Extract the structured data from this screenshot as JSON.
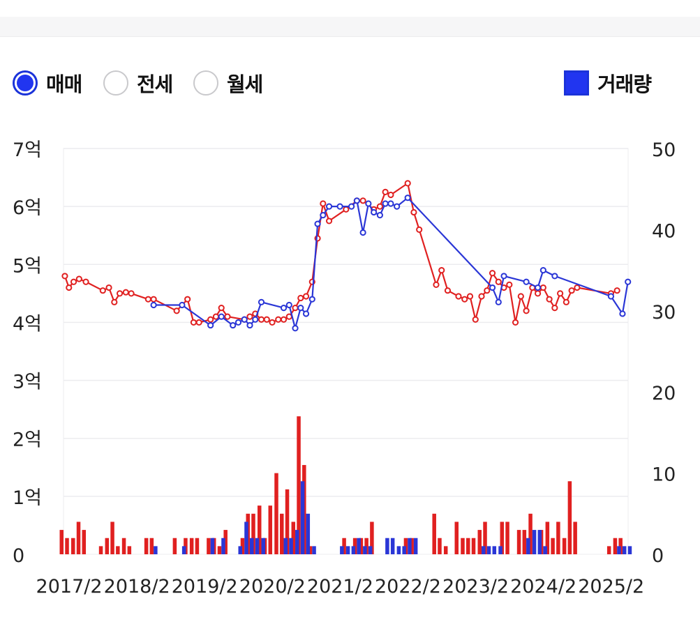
{
  "filters": {
    "options": [
      {
        "label": "매매",
        "checked": true
      },
      {
        "label": "전세",
        "checked": false
      },
      {
        "label": "월세",
        "checked": false
      }
    ],
    "volume_legend": "거래량"
  },
  "colors": {
    "sale": "#e02020",
    "deal": "#2a36d6",
    "grid": "#ececef"
  },
  "chart_data": {
    "type": "line",
    "left_axis": {
      "ticks": [
        "0",
        "1억",
        "2억",
        "3억",
        "4억",
        "5억",
        "6억",
        "7억"
      ],
      "range": [
        0,
        7
      ]
    },
    "right_axis": {
      "ticks": [
        "0",
        "10",
        "20",
        "30",
        "40",
        "50"
      ],
      "range": [
        0,
        50
      ]
    },
    "x_range": [
      2017.0,
      2025.333
    ],
    "x_ticks": [
      "2017/2",
      "2018/2",
      "2019/2",
      "2020/2",
      "2021/2",
      "2022/2",
      "2023/2",
      "2024/2",
      "2025/2"
    ],
    "x_tick_values": [
      2017.083,
      2018.083,
      2019.083,
      2020.083,
      2021.083,
      2022.083,
      2023.083,
      2024.083,
      2025.083
    ],
    "series": [
      {
        "color": "#e02020",
        "points": [
          [
            2017.02,
            4.8
          ],
          [
            2017.08,
            4.6
          ],
          [
            2017.15,
            4.7
          ],
          [
            2017.23,
            4.75
          ],
          [
            2017.33,
            4.7
          ],
          [
            2017.58,
            4.55
          ],
          [
            2017.67,
            4.6
          ],
          [
            2017.75,
            4.35
          ],
          [
            2017.83,
            4.5
          ],
          [
            2017.92,
            4.52
          ],
          [
            2018.0,
            4.5
          ],
          [
            2018.25,
            4.4
          ],
          [
            2018.33,
            4.4
          ],
          [
            2018.67,
            4.2
          ],
          [
            2018.83,
            4.4
          ],
          [
            2018.92,
            4.0
          ],
          [
            2019.0,
            4.0
          ],
          [
            2019.17,
            4.05
          ],
          [
            2019.25,
            4.1
          ],
          [
            2019.33,
            4.25
          ],
          [
            2019.42,
            4.1
          ],
          [
            2019.67,
            4.05
          ],
          [
            2019.75,
            4.1
          ],
          [
            2019.83,
            4.15
          ],
          [
            2019.92,
            4.05
          ],
          [
            2020.0,
            4.05
          ],
          [
            2020.08,
            4.0
          ],
          [
            2020.17,
            4.05
          ],
          [
            2020.25,
            4.05
          ],
          [
            2020.33,
            4.1
          ],
          [
            2020.42,
            4.25
          ],
          [
            2020.5,
            4.42
          ],
          [
            2020.58,
            4.45
          ],
          [
            2020.67,
            4.7
          ],
          [
            2020.75,
            5.45
          ],
          [
            2020.83,
            6.05
          ],
          [
            2020.92,
            5.75
          ],
          [
            2021.17,
            5.95
          ],
          [
            2021.33,
            6.1
          ],
          [
            2021.42,
            6.1
          ],
          [
            2021.58,
            5.95
          ],
          [
            2021.67,
            6.0
          ],
          [
            2021.75,
            6.25
          ],
          [
            2021.83,
            6.2
          ],
          [
            2022.08,
            6.4
          ],
          [
            2022.17,
            5.9
          ],
          [
            2022.25,
            5.6
          ],
          [
            2022.5,
            4.65
          ],
          [
            2022.58,
            4.9
          ],
          [
            2022.67,
            4.55
          ],
          [
            2022.83,
            4.45
          ],
          [
            2022.92,
            4.4
          ],
          [
            2023.0,
            4.45
          ],
          [
            2023.08,
            4.05
          ],
          [
            2023.17,
            4.45
          ],
          [
            2023.25,
            4.55
          ],
          [
            2023.33,
            4.85
          ],
          [
            2023.42,
            4.7
          ],
          [
            2023.5,
            4.6
          ],
          [
            2023.58,
            4.65
          ],
          [
            2023.67,
            4.0
          ],
          [
            2023.75,
            4.45
          ],
          [
            2023.83,
            4.2
          ],
          [
            2023.92,
            4.6
          ],
          [
            2024.0,
            4.5
          ],
          [
            2024.08,
            4.6
          ],
          [
            2024.17,
            4.4
          ],
          [
            2024.25,
            4.25
          ],
          [
            2024.33,
            4.5
          ],
          [
            2024.42,
            4.35
          ],
          [
            2024.5,
            4.55
          ],
          [
            2024.58,
            4.6
          ],
          [
            2025.08,
            4.5
          ],
          [
            2025.17,
            4.55
          ]
        ]
      },
      {
        "color": "#2a36d6",
        "points": [
          [
            2018.33,
            4.3
          ],
          [
            2018.75,
            4.3
          ],
          [
            2019.17,
            3.95
          ],
          [
            2019.33,
            4.1
          ],
          [
            2019.5,
            3.95
          ],
          [
            2019.58,
            4.0
          ],
          [
            2019.67,
            4.05
          ],
          [
            2019.75,
            3.95
          ],
          [
            2019.83,
            4.05
          ],
          [
            2019.92,
            4.35
          ],
          [
            2020.25,
            4.25
          ],
          [
            2020.33,
            4.3
          ],
          [
            2020.42,
            3.9
          ],
          [
            2020.5,
            4.25
          ],
          [
            2020.58,
            4.15
          ],
          [
            2020.67,
            4.4
          ],
          [
            2020.75,
            5.7
          ],
          [
            2020.83,
            5.85
          ],
          [
            2020.92,
            6.0
          ],
          [
            2021.08,
            6.0
          ],
          [
            2021.25,
            6.0
          ],
          [
            2021.33,
            6.1
          ],
          [
            2021.42,
            5.55
          ],
          [
            2021.5,
            6.05
          ],
          [
            2021.58,
            5.9
          ],
          [
            2021.67,
            5.85
          ],
          [
            2021.75,
            6.05
          ],
          [
            2021.83,
            6.05
          ],
          [
            2021.92,
            6.0
          ],
          [
            2022.08,
            6.15
          ],
          [
            2023.33,
            4.6
          ],
          [
            2023.42,
            4.35
          ],
          [
            2023.5,
            4.8
          ],
          [
            2023.83,
            4.7
          ],
          [
            2024.0,
            4.6
          ],
          [
            2024.08,
            4.9
          ],
          [
            2024.25,
            4.8
          ],
          [
            2025.08,
            4.45
          ],
          [
            2025.25,
            4.15
          ],
          [
            2025.33,
            4.7
          ]
        ]
      }
    ],
    "volume_series": [
      {
        "color": "#e02020",
        "bars": [
          [
            2017.0,
            3
          ],
          [
            2017.08,
            2
          ],
          [
            2017.17,
            2
          ],
          [
            2017.25,
            4
          ],
          [
            2017.33,
            3
          ],
          [
            2017.58,
            1
          ],
          [
            2017.67,
            2
          ],
          [
            2017.75,
            4
          ],
          [
            2017.83,
            1
          ],
          [
            2017.92,
            2
          ],
          [
            2018.0,
            1
          ],
          [
            2018.25,
            2
          ],
          [
            2018.33,
            2
          ],
          [
            2018.67,
            2
          ],
          [
            2018.83,
            2
          ],
          [
            2018.92,
            2
          ],
          [
            2019.0,
            2
          ],
          [
            2019.17,
            2
          ],
          [
            2019.25,
            2
          ],
          [
            2019.33,
            1
          ],
          [
            2019.42,
            3
          ],
          [
            2019.67,
            2
          ],
          [
            2019.75,
            5
          ],
          [
            2019.83,
            5
          ],
          [
            2019.92,
            6
          ],
          [
            2020.0,
            2
          ],
          [
            2020.08,
            6
          ],
          [
            2020.17,
            10
          ],
          [
            2020.25,
            5
          ],
          [
            2020.33,
            8
          ],
          [
            2020.42,
            4
          ],
          [
            2020.5,
            17
          ],
          [
            2020.58,
            11
          ],
          [
            2020.67,
            1
          ],
          [
            2021.17,
            2
          ],
          [
            2021.33,
            2
          ],
          [
            2021.42,
            2
          ],
          [
            2021.5,
            2
          ],
          [
            2021.58,
            4
          ],
          [
            2022.08,
            2
          ],
          [
            2022.17,
            2
          ],
          [
            2022.5,
            5
          ],
          [
            2022.58,
            2
          ],
          [
            2022.67,
            1
          ],
          [
            2022.83,
            4
          ],
          [
            2022.92,
            2
          ],
          [
            2023.0,
            2
          ],
          [
            2023.08,
            2
          ],
          [
            2023.17,
            3
          ],
          [
            2023.25,
            4
          ],
          [
            2023.5,
            4
          ],
          [
            2023.58,
            4
          ],
          [
            2023.75,
            3
          ],
          [
            2023.83,
            3
          ],
          [
            2023.92,
            5
          ],
          [
            2024.08,
            3
          ],
          [
            2024.17,
            4
          ],
          [
            2024.25,
            2
          ],
          [
            2024.33,
            4
          ],
          [
            2024.42,
            2
          ],
          [
            2024.5,
            9
          ],
          [
            2024.58,
            4
          ],
          [
            2025.08,
            1
          ],
          [
            2025.17,
            2
          ],
          [
            2025.25,
            2
          ]
        ]
      },
      {
        "color": "#2a36d6",
        "bars": [
          [
            2018.33,
            1
          ],
          [
            2018.75,
            1
          ],
          [
            2019.17,
            2
          ],
          [
            2019.33,
            2
          ],
          [
            2019.58,
            1
          ],
          [
            2019.67,
            4
          ],
          [
            2019.75,
            2
          ],
          [
            2019.83,
            2
          ],
          [
            2019.92,
            2
          ],
          [
            2020.25,
            2
          ],
          [
            2020.33,
            2
          ],
          [
            2020.42,
            3
          ],
          [
            2020.5,
            9
          ],
          [
            2020.58,
            5
          ],
          [
            2020.67,
            1
          ],
          [
            2021.08,
            1
          ],
          [
            2021.17,
            1
          ],
          [
            2021.25,
            1
          ],
          [
            2021.33,
            2
          ],
          [
            2021.42,
            1
          ],
          [
            2021.5,
            1
          ],
          [
            2021.75,
            2
          ],
          [
            2021.83,
            2
          ],
          [
            2021.92,
            1
          ],
          [
            2022.0,
            1
          ],
          [
            2022.08,
            2
          ],
          [
            2022.17,
            2
          ],
          [
            2023.17,
            1
          ],
          [
            2023.25,
            1
          ],
          [
            2023.33,
            1
          ],
          [
            2023.42,
            1
          ],
          [
            2023.83,
            2
          ],
          [
            2023.92,
            3
          ],
          [
            2024.0,
            3
          ],
          [
            2024.08,
            1
          ],
          [
            2025.17,
            1
          ],
          [
            2025.25,
            1
          ],
          [
            2025.33,
            1
          ]
        ]
      }
    ]
  }
}
